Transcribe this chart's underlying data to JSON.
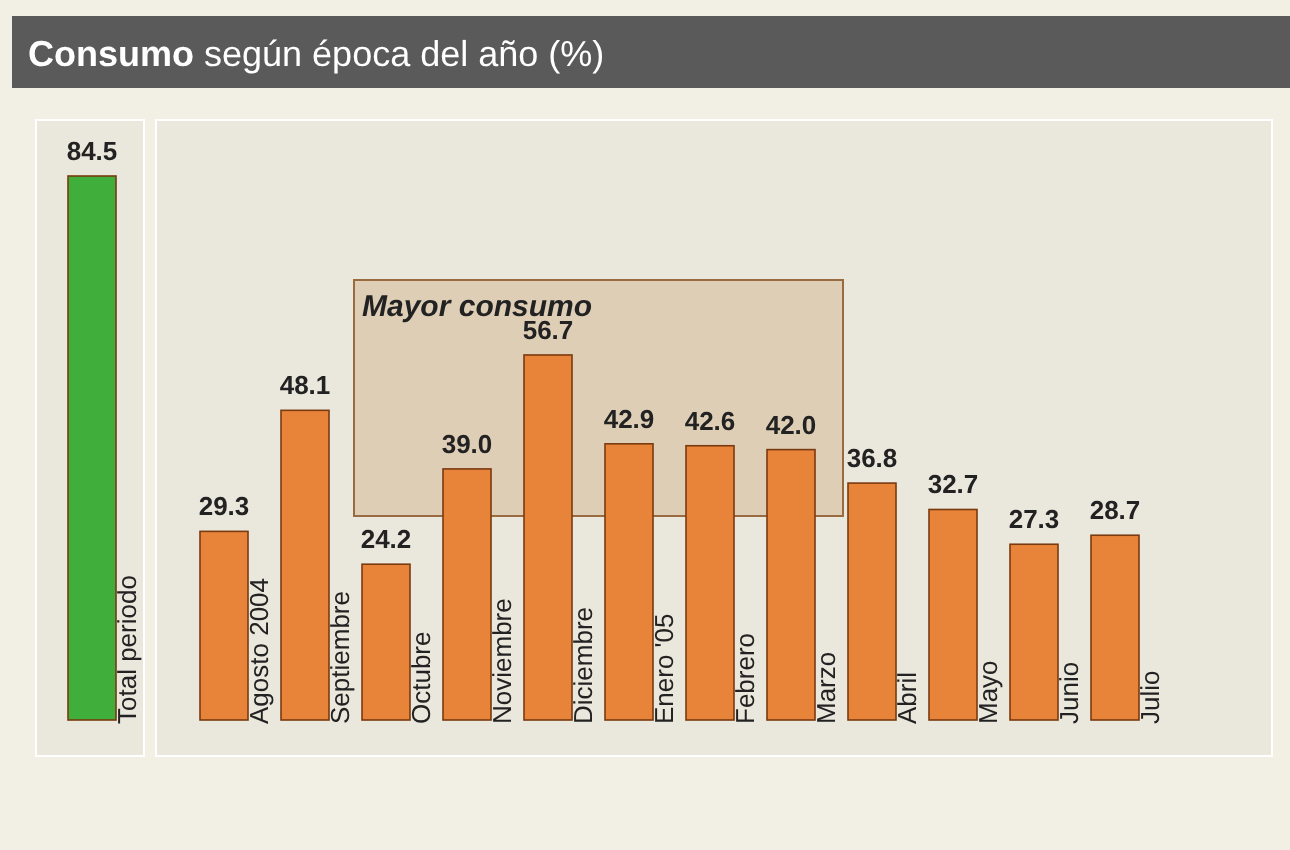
{
  "chart_data": {
    "type": "bar",
    "title": "Consumo según época del año (%)",
    "categories": [
      "Total periodo",
      "Agosto 2004",
      "Septiembre",
      "Octubre",
      "Noviembre",
      "Diciembre",
      "Enero '05",
      "Febrero",
      "Marzo",
      "Abril",
      "Mayo",
      "Junio",
      "Julio"
    ],
    "values": [
      84.5,
      29.3,
      48.1,
      24.2,
      39.0,
      56.7,
      42.9,
      42.6,
      42.0,
      36.8,
      32.7,
      27.3,
      28.7
    ],
    "colors": [
      "#3fae3a",
      "#e8843a",
      "#e8843a",
      "#e8843a",
      "#e8843a",
      "#e8843a",
      "#e8843a",
      "#e8843a",
      "#e8843a",
      "#e8843a",
      "#e8843a",
      "#e8843a",
      "#e8843a"
    ],
    "value_labels": [
      "84.5",
      "29.3",
      "48.1",
      "24.2",
      "39.0",
      "56.7",
      "42.9",
      "42.6",
      "42.0",
      "36.8",
      "32.7",
      "27.3",
      "28.7"
    ],
    "annotations": [
      "Mayor consumo"
    ]
  }
}
